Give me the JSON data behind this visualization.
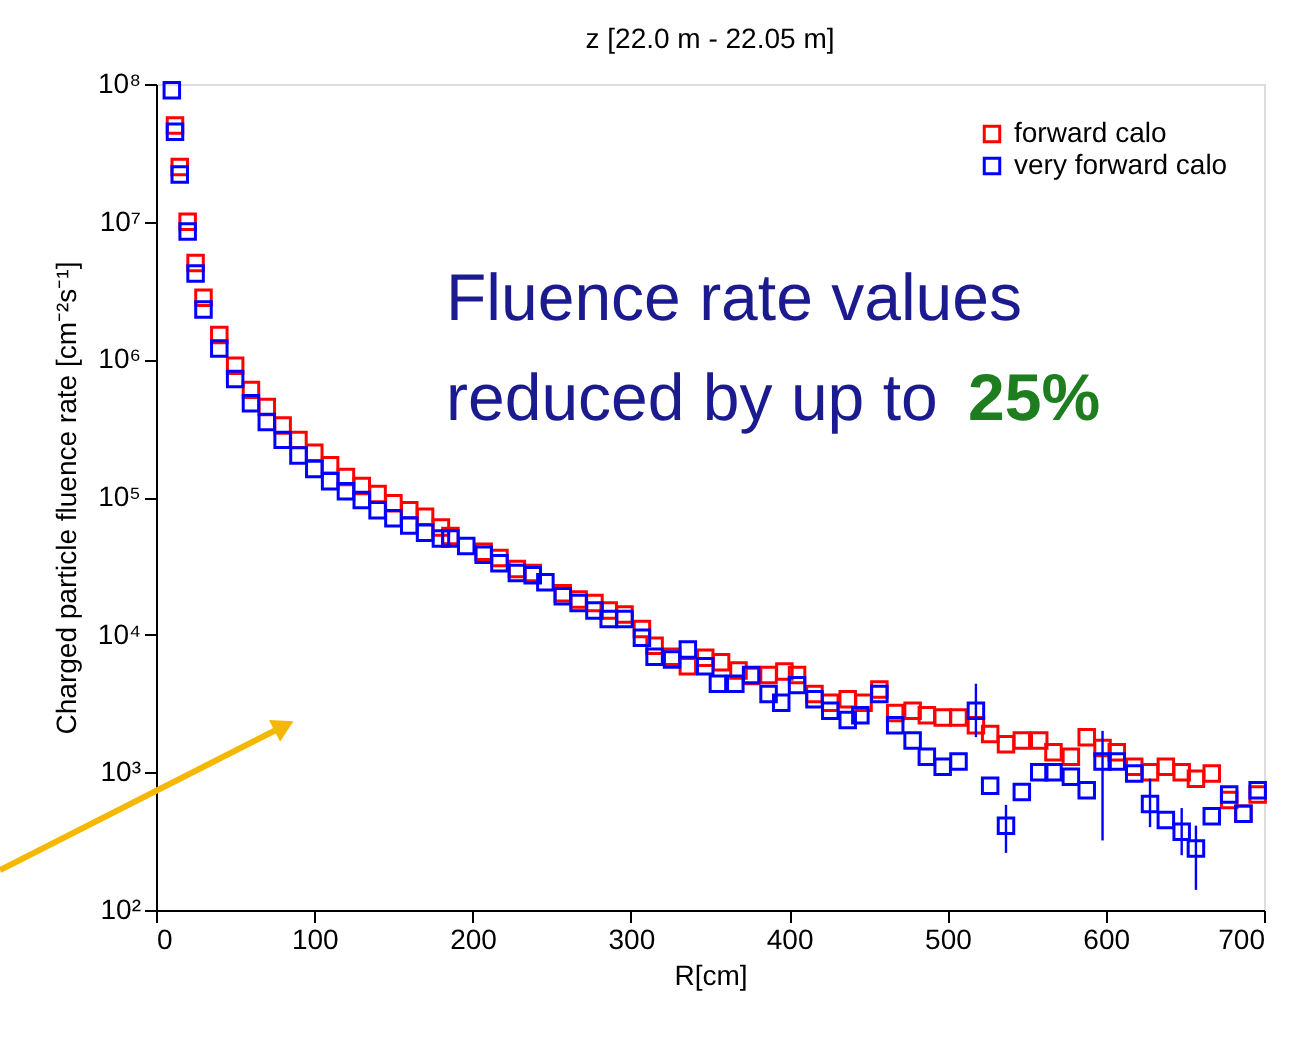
{
  "chart_data": {
    "type": "scatter",
    "title": "z  [22.0 m - 22.05 m]",
    "xlabel": "R[cm]",
    "ylabel": "Charged particle fluence rate [cm⁻²s⁻¹]",
    "annotations": [
      "Fluence rate values",
      "reduced by up to ",
      "25%"
    ],
    "log": "y",
    "marker": "square",
    "legend": "top right",
    "grid": false,
    "xlim": [
      0,
      700
    ],
    "xticks": [
      0,
      100,
      200,
      300,
      400,
      500,
      600,
      700
    ],
    "ylim": [
      100,
      100000000
    ],
    "yticks": [
      {
        "value": 100,
        "label": "10²"
      },
      {
        "value": 1000,
        "label": "10³"
      },
      {
        "value": 10000,
        "label": "10⁴"
      },
      {
        "value": 100000,
        "label": "10⁵"
      },
      {
        "value": 1000000,
        "label": "10⁶"
      },
      {
        "value": 10000000,
        "label": "10⁷"
      },
      {
        "value": 100000000,
        "label": "10⁸"
      }
    ],
    "series": [
      {
        "name": "forward calo",
        "color": "#ff0000",
        "x": [
          12,
          15,
          20,
          25,
          30,
          40,
          50,
          60,
          70,
          80,
          90,
          100,
          110,
          120,
          130,
          140,
          150,
          160,
          170,
          180,
          186,
          207,
          217,
          228,
          238,
          257,
          267,
          277,
          286,
          296,
          307,
          315,
          326,
          336,
          347,
          357,
          368,
          376,
          387,
          397,
          405,
          416,
          426,
          437,
          447,
          457,
          467,
          478,
          487,
          497,
          507,
          518,
          527,
          537,
          547,
          558,
          567,
          578,
          588,
          598,
          607,
          618,
          628,
          638,
          648,
          657,
          667,
          678,
          687,
          696
        ],
        "values": [
          50000000,
          25000000,
          10000000,
          5000000,
          2800000,
          1500000,
          900000,
          600000,
          450000,
          330000,
          260000,
          210000,
          170000,
          140000,
          120000,
          105000,
          90000,
          80000,
          72000,
          60000,
          52000,
          40000,
          36000,
          30000,
          28000,
          20000,
          18000,
          17000,
          15000,
          14000,
          11000,
          8300,
          6900,
          5900,
          6800,
          6300,
          5500,
          5000,
          5100,
          5400,
          5100,
          3700,
          3200,
          3400,
          3200,
          4000,
          2700,
          2800,
          2600,
          2500,
          2500,
          2200,
          1900,
          1600,
          1700,
          1700,
          1400,
          1300,
          1800,
          1500,
          1400,
          1100,
          1000,
          1100,
          1000,
          900,
          980,
          630,
          500,
          690
        ]
      },
      {
        "name": "very forward calo",
        "color": "#0000ff",
        "x": [
          10,
          12,
          15,
          20,
          25,
          30,
          40,
          50,
          60,
          70,
          80,
          90,
          100,
          110,
          120,
          130,
          140,
          150,
          160,
          170,
          180,
          186,
          196,
          207,
          217,
          228,
          238,
          246,
          257,
          267,
          277,
          286,
          296,
          307,
          315,
          326,
          336,
          347,
          355,
          366,
          376,
          387,
          395,
          405,
          416,
          426,
          437,
          445,
          457,
          467,
          478,
          487,
          497,
          507,
          518,
          527,
          537,
          547,
          558,
          567,
          578,
          588,
          598,
          607,
          618,
          628,
          638,
          648,
          657,
          667,
          678,
          687,
          696
        ],
        "values": [
          90000000,
          45000000,
          22000000,
          8500000,
          4200000,
          2300000,
          1200000,
          720000,
          480000,
          350000,
          260000,
          200000,
          160000,
          130000,
          110000,
          95000,
          80000,
          70000,
          62000,
          55000,
          50000,
          50000,
          44000,
          38000,
          33000,
          28000,
          27000,
          24000,
          19000,
          17000,
          15000,
          13000,
          13000,
          9500,
          6900,
          6600,
          7800,
          5900,
          4400,
          4400,
          5100,
          3700,
          3200,
          4300,
          3400,
          2800,
          2400,
          2600,
          3700,
          2200,
          1700,
          1300,
          1100,
          1200,
          2800,
          800,
          410,
          720,
          1000,
          1000,
          930,
          740,
          1200,
          1200,
          980,
          590,
          450,
          370,
          280,
          480,
          690,
          500,
          740
        ],
        "errors": [
          null,
          null,
          null,
          null,
          null,
          null,
          null,
          null,
          null,
          null,
          null,
          null,
          null,
          null,
          null,
          null,
          null,
          null,
          null,
          null,
          null,
          null,
          null,
          null,
          null,
          null,
          null,
          null,
          null,
          null,
          null,
          null,
          null,
          null,
          null,
          null,
          null,
          null,
          null,
          null,
          null,
          null,
          null,
          null,
          null,
          null,
          null,
          null,
          null,
          null,
          null,
          null,
          null,
          null,
          [
            1800,
            4400
          ],
          null,
          [
            260,
            580
          ],
          null,
          null,
          null,
          null,
          null,
          [
            320,
            2000
          ],
          null,
          null,
          [
            400,
            900
          ],
          null,
          [
            250,
            550
          ],
          [
            140,
            410
          ],
          null,
          null,
          null,
          null
        ]
      }
    ]
  }
}
